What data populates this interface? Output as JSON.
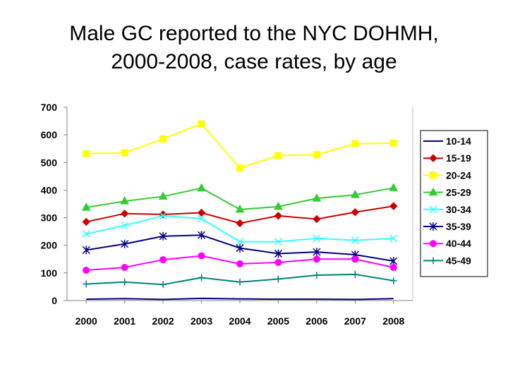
{
  "title_line1": "Male GC reported to the NYC DOHMH,",
  "title_line2": "2000-2008, case rates, by age",
  "chart_data": {
    "type": "line",
    "title": "Male GC reported to the NYC DOHMH, 2000-2008, case rates, by age",
    "xlabel": "",
    "ylabel": "",
    "ylim": [
      0,
      700
    ],
    "yticks": [
      "0",
      "100",
      "200",
      "300",
      "400",
      "500",
      "600",
      "700"
    ],
    "categories": [
      "2000",
      "2001",
      "2002",
      "2003",
      "2004",
      "2005",
      "2006",
      "2007",
      "2008"
    ],
    "legend_position": "right",
    "series": [
      {
        "name": "10-14",
        "color": "#000080",
        "marker": "none",
        "values": [
          5,
          7,
          4,
          8,
          6,
          5,
          5,
          4,
          7
        ]
      },
      {
        "name": "15-19",
        "color": "#cc0000",
        "marker": "diamond",
        "values": [
          285,
          315,
          312,
          318,
          280,
          307,
          295,
          320,
          342
        ]
      },
      {
        "name": "20-24",
        "color": "#ffff00",
        "marker": "square",
        "values": [
          532,
          535,
          585,
          640,
          480,
          525,
          528,
          568,
          570
        ]
      },
      {
        "name": "25-29",
        "color": "#33cc33",
        "marker": "triangle",
        "values": [
          337,
          360,
          377,
          407,
          330,
          340,
          370,
          383,
          408
        ]
      },
      {
        "name": "30-34",
        "color": "#33ffff",
        "marker": "x",
        "values": [
          241,
          272,
          307,
          297,
          213,
          213,
          225,
          218,
          225
        ]
      },
      {
        "name": "35-39",
        "color": "#000080",
        "marker": "star",
        "values": [
          183,
          205,
          233,
          237,
          190,
          170,
          176,
          166,
          143
        ]
      },
      {
        "name": "40-44",
        "color": "#ff00ff",
        "marker": "circle",
        "values": [
          110,
          120,
          148,
          162,
          133,
          138,
          150,
          150,
          120
        ]
      },
      {
        "name": "45-49",
        "color": "#008080",
        "marker": "plus",
        "values": [
          60,
          67,
          58,
          83,
          67,
          78,
          92,
          95,
          72
        ]
      }
    ]
  }
}
